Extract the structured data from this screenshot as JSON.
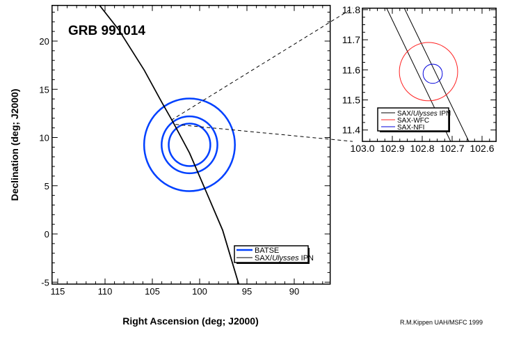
{
  "chart_data": [
    {
      "type": "line",
      "title": "GRB 991014",
      "xlabel": "Right Ascension (deg; J2000)",
      "ylabel": "Declination (deg; J2000)",
      "xlim": [
        115.6,
        86.2
      ],
      "ylim": [
        -5.2,
        23.7
      ],
      "x_reversed": true,
      "x_ticks": [
        115,
        110,
        105,
        100,
        95,
        90
      ],
      "y_ticks": [
        -5,
        0,
        5,
        10,
        15,
        20
      ],
      "grid": false,
      "legend_position": "bottom-right",
      "legend": [
        {
          "label_pre": "SAX/",
          "label_italic": "Ulysses",
          "label_post": " IPN",
          "color": "#000000"
        },
        {
          "label": "BATSE",
          "color": "#0040ff"
        }
      ],
      "batse_circles": {
        "center": {
          "ra": 101.07,
          "dec": 9.24
        },
        "radii_deg": [
          4.8,
          2.95,
          2.2
        ],
        "color": "#0040ff"
      },
      "ipn_annulus": {
        "color": "#000000",
        "width_deg": 0.06,
        "points": [
          {
            "ra": 110.6,
            "dec": 23.7
          },
          {
            "ra": 108.6,
            "dec": 21.2
          },
          {
            "ra": 105.9,
            "dec": 17.0
          },
          {
            "ra": 104.0,
            "dec": 13.6
          },
          {
            "ra": 102.9,
            "dec": 11.7
          },
          {
            "ra": 101.1,
            "dec": 8.4
          },
          {
            "ra": 99.3,
            "dec": 4.3
          },
          {
            "ra": 97.6,
            "dec": 0.4
          },
          {
            "ra": 95.9,
            "dec": -5.2
          }
        ]
      }
    },
    {
      "type": "line",
      "xlim": [
        103.0,
        102.553
      ],
      "ylim": [
        11.362,
        11.805
      ],
      "x_reversed": true,
      "x_ticks": [
        "103.0",
        "102.9",
        "102.8",
        "102.7",
        "102.6"
      ],
      "y_ticks": [
        "11.4",
        "11.5",
        "11.6",
        "11.7",
        "11.8"
      ],
      "grid": false,
      "legend_position": "bottom-left",
      "legend": [
        {
          "label_pre": "SAX/",
          "label_italic": "Ulysses",
          "label_post": " IPN",
          "color": "#000000"
        },
        {
          "label": "SAX-WFC",
          "color": "#ff2020"
        },
        {
          "label": "SAX-NFI",
          "color": "#0000dd"
        }
      ],
      "ipn_lines": [
        [
          {
            "ra": 102.919,
            "dec": 11.805
          },
          {
            "ra": 102.705,
            "dec": 11.362
          }
        ],
        [
          {
            "ra": 102.86,
            "dec": 11.805
          },
          {
            "ra": 102.644,
            "dec": 11.362
          }
        ]
      ],
      "wfc_circle": {
        "ra": 102.779,
        "dec": 11.594,
        "radius_deg": 0.097,
        "color": "#ff2020"
      },
      "nfi_circle": {
        "ra": 102.765,
        "dec": 11.587,
        "radius_deg": 0.032,
        "color": "#0000dd"
      }
    }
  ],
  "credit": "R.M.Kippen UAH/MSFC 1999"
}
